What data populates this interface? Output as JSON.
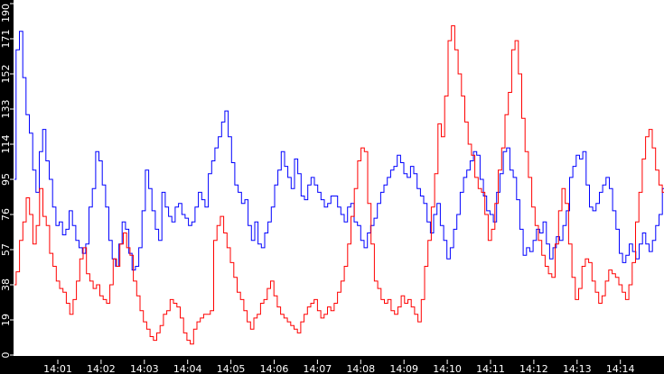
{
  "chart_data": {
    "type": "line",
    "title": "",
    "xlabel": "",
    "ylabel": "",
    "ylim": [
      0,
      190
    ],
    "y_ticks": [
      0,
      19,
      38,
      57,
      76,
      95,
      114,
      133,
      152,
      171,
      190
    ],
    "x_tick_labels": [
      "14:01",
      "14:02",
      "14:03",
      "14:04",
      "14:05",
      "14:06",
      "14:07",
      "14:08",
      "14:09",
      "14:10",
      "14:11",
      "14:12",
      "14:13",
      "14:14"
    ],
    "x_range": [
      "14:00:00",
      "14:15:00"
    ],
    "grid": false,
    "legend": false,
    "background": "#000000",
    "plot_background": "#ffffff",
    "series": [
      {
        "name": "blue",
        "color": "#0000ff",
        "values": [
          95,
          165,
          175,
          150,
          130,
          120,
          100,
          88,
          110,
          122,
          105,
          95,
          80,
          70,
          72,
          65,
          68,
          78,
          70,
          62,
          58,
          55,
          60,
          80,
          90,
          110,
          105,
          92,
          80,
          62,
          52,
          48,
          60,
          72,
          68,
          55,
          46,
          48,
          58,
          78,
          100,
          90,
          78,
          68,
          62,
          88,
          80,
          75,
          72,
          80,
          82,
          76,
          74,
          70,
          72,
          80,
          88,
          84,
          80,
          98,
          105,
          112,
          118,
          126,
          132,
          118,
          104,
          92,
          88,
          82,
          84,
          70,
          62,
          72,
          60,
          58,
          66,
          72,
          80,
          92,
          100,
          110,
          102,
          96,
          90,
          106,
          98,
          86,
          84,
          92,
          96,
          92,
          88,
          84,
          80,
          82,
          86,
          86,
          80,
          76,
          72,
          80,
          82,
          72,
          70,
          62,
          58,
          66,
          70,
          74,
          82,
          88,
          92,
          96,
          100,
          102,
          108,
          104,
          98,
          96,
          102,
          98,
          90,
          86,
          82,
          72,
          66,
          76,
          82,
          70,
          62,
          52,
          58,
          68,
          76,
          88,
          96,
          100,
          105,
          110,
          108,
          95,
          86,
          78,
          76,
          72,
          88,
          98,
          110,
          112,
          100,
          96,
          84,
          68,
          54,
          58,
          56,
          62,
          68,
          66,
          72,
          60,
          52,
          58,
          64,
          62,
          70,
          78,
          96,
          102,
          108,
          106,
          110,
          92,
          80,
          78,
          82,
          88,
          92,
          96,
          90,
          78,
          68,
          55,
          50,
          54,
          60,
          56,
          52,
          60,
          66,
          60,
          56,
          62,
          70,
          76,
          90
        ]
      },
      {
        "name": "red",
        "color": "#ff0000",
        "values": [
          38,
          45,
          62,
          72,
          85,
          76,
          60,
          70,
          90,
          75,
          70,
          55,
          48,
          40,
          36,
          34,
          28,
          22,
          30,
          40,
          52,
          58,
          44,
          40,
          36,
          38,
          32,
          30,
          28,
          38,
          52,
          48,
          60,
          66,
          58,
          54,
          40,
          32,
          24,
          18,
          14,
          10,
          8,
          12,
          16,
          22,
          24,
          30,
          28,
          26,
          20,
          12,
          8,
          6,
          14,
          18,
          20,
          22,
          22,
          24,
          62,
          70,
          75,
          66,
          58,
          50,
          42,
          34,
          30,
          24,
          18,
          14,
          20,
          22,
          28,
          30,
          36,
          40,
          32,
          26,
          22,
          20,
          18,
          16,
          14,
          12,
          18,
          22,
          26,
          28,
          30,
          24,
          20,
          22,
          26,
          24,
          28,
          34,
          40,
          48,
          60,
          75,
          90,
          105,
          112,
          110,
          82,
          60,
          40,
          36,
          30,
          28,
          30,
          24,
          22,
          26,
          32,
          28,
          30,
          26,
          22,
          18,
          30,
          48,
          62,
          80,
          98,
          125,
          118,
          140,
          170,
          178,
          165,
          152,
          140,
          126,
          114,
          108,
          96,
          90,
          88,
          76,
          62,
          68,
          82,
          100,
          112,
          130,
          142,
          165,
          170,
          152,
          128,
          110,
          96,
          80,
          70,
          62,
          54,
          48,
          44,
          42,
          60,
          78,
          90,
          82,
          60,
          42,
          30,
          36,
          48,
          52,
          50,
          40,
          34,
          28,
          32,
          40,
          46,
          44,
          42,
          38,
          34,
          30,
          38,
          50,
          72,
          88,
          106,
          118,
          122,
          112,
          100,
          92,
          88
        ]
      }
    ]
  },
  "axes": {
    "y_tick_labels": [
      "0",
      "19",
      "38",
      "57",
      "76",
      "95",
      "114",
      "133",
      "152",
      "171",
      "190"
    ],
    "x_tick_labels": [
      "14:01",
      "14:02",
      "14:03",
      "14:04",
      "14:05",
      "14:06",
      "14:07",
      "14:08",
      "14:09",
      "14:10",
      "14:11",
      "14:12",
      "14:13",
      "14:14"
    ]
  }
}
